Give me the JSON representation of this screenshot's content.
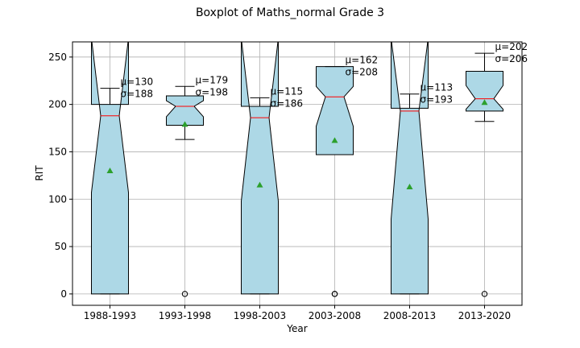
{
  "chart_data": {
    "type": "boxplot",
    "title": "Boxplot of Maths_normal Grade 3",
    "xlabel": "Year",
    "ylabel": "RIT",
    "ylim": [
      -12,
      266
    ],
    "yticks": [
      0,
      50,
      100,
      150,
      200,
      250
    ],
    "grid": true,
    "notched": true,
    "colors": {
      "box_fill": "#add8e6",
      "median": "#ff0000",
      "mean_marker": "#2ca02c",
      "grid": "#b0b0b0"
    },
    "categories": [
      "1988-1993",
      "1993-1998",
      "1998-2003",
      "2003-2008",
      "2008-2013",
      "2013-2020"
    ],
    "boxes": [
      {
        "category": "1988-1993",
        "whislo": 0,
        "q1": 0,
        "med": 188,
        "q3": 200,
        "whishi": 217,
        "notch_lo": 107,
        "notch_hi": 270,
        "mean": 130,
        "fliers": [],
        "mean_label": "μ=130",
        "sd_label": "σ=188"
      },
      {
        "category": "1993-1998",
        "whislo": 163,
        "q1": 178,
        "med": 198,
        "q3": 209,
        "whishi": 219,
        "notch_lo": 187,
        "notch_hi": 204,
        "mean": 179,
        "fliers": [
          0
        ],
        "mean_label": "μ=179",
        "sd_label": "σ=198"
      },
      {
        "category": "1998-2003",
        "whislo": 0,
        "q1": 0,
        "med": 186,
        "q3": 198,
        "whishi": 207,
        "notch_lo": 98,
        "notch_hi": 270,
        "mean": 115,
        "fliers": [],
        "mean_label": "μ=115",
        "sd_label": "σ=186"
      },
      {
        "category": "2003-2008",
        "whislo": 147,
        "q1": 147,
        "med": 208,
        "q3": 240,
        "whishi": 240,
        "notch_lo": 177,
        "notch_hi": 219,
        "mean": 162,
        "fliers": [
          0,
          0
        ],
        "mean_label": "μ=162",
        "sd_label": "σ=208"
      },
      {
        "category": "2008-2013",
        "whislo": 0,
        "q1": 0,
        "med": 193,
        "q3": 196,
        "whishi": 211,
        "notch_lo": 79,
        "notch_hi": 270,
        "mean": 113,
        "fliers": [],
        "mean_label": "μ=113",
        "sd_label": "σ=193"
      },
      {
        "category": "2013-2020",
        "whislo": 182,
        "q1": 193,
        "med": 206,
        "q3": 235,
        "whishi": 254,
        "notch_lo": 195,
        "notch_hi": 220,
        "mean": 202,
        "fliers": [
          0
        ],
        "mean_label": "μ=202",
        "sd_label": "σ=206"
      }
    ]
  }
}
